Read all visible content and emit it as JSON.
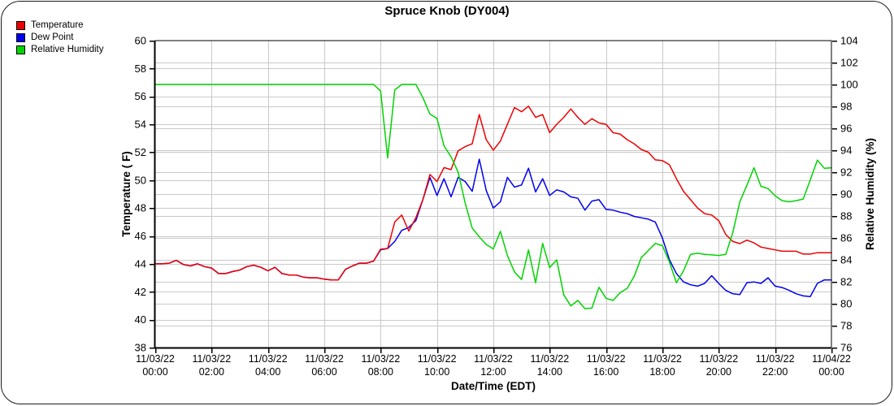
{
  "title": "Spruce Knob (DY004)",
  "chart_data": {
    "type": "line",
    "title": "Spruce Knob (DY004)",
    "xlabel": "Date/Time (EDT)",
    "ylabel_left": "Temperature ( F)",
    "ylabel_right": "Relative Humidity (%)",
    "grid": true,
    "grid_color": "#c9c9c9",
    "axis_color": "#000000",
    "axis_left": {
      "min": 38,
      "max": 60,
      "tick_step": 2,
      "ticks": [
        38,
        40,
        42,
        44,
        46,
        48,
        50,
        52,
        54,
        56,
        58,
        60
      ]
    },
    "axis_right": {
      "min": 76,
      "max": 104,
      "tick_step": 2,
      "ticks": [
        76,
        78,
        80,
        82,
        84,
        86,
        88,
        90,
        92,
        94,
        96,
        98,
        100,
        102,
        104
      ]
    },
    "x_ticks": [
      {
        "date": "11/03/22",
        "time": "00:00"
      },
      {
        "date": "11/03/22",
        "time": "02:00"
      },
      {
        "date": "11/03/22",
        "time": "04:00"
      },
      {
        "date": "11/03/22",
        "time": "06:00"
      },
      {
        "date": "11/03/22",
        "time": "08:00"
      },
      {
        "date": "11/03/22",
        "time": "10:00"
      },
      {
        "date": "11/03/22",
        "time": "12:00"
      },
      {
        "date": "11/03/22",
        "time": "14:00"
      },
      {
        "date": "11/03/22",
        "time": "16:00"
      },
      {
        "date": "11/03/22",
        "time": "18:00"
      },
      {
        "date": "11/03/22",
        "time": "20:00"
      },
      {
        "date": "11/03/22",
        "time": "22:00"
      },
      {
        "date": "11/04/22",
        "time": "00:00"
      }
    ],
    "x_hours_step": 0.25,
    "series": [
      {
        "name": "Temperature",
        "axis": "left",
        "color": "#ee0000",
        "values": [
          44.0,
          44.0,
          44.05,
          44.25,
          43.95,
          43.85,
          44.0,
          43.8,
          43.7,
          43.3,
          43.3,
          43.45,
          43.55,
          43.8,
          43.9,
          43.75,
          43.5,
          43.75,
          43.3,
          43.2,
          43.2,
          43.05,
          43.0,
          43.0,
          42.9,
          42.85,
          42.85,
          43.6,
          43.85,
          44.05,
          44.05,
          44.2,
          45.05,
          45.1,
          47.0,
          47.5,
          46.35,
          47.3,
          48.6,
          50.4,
          49.9,
          50.9,
          50.75,
          52.1,
          52.4,
          52.6,
          54.7,
          52.9,
          52.15,
          52.8,
          54.0,
          55.2,
          54.9,
          55.3,
          54.5,
          54.7,
          53.4,
          54.0,
          54.5,
          55.1,
          54.5,
          54.0,
          54.4,
          54.1,
          54.0,
          53.4,
          53.3,
          52.9,
          52.6,
          52.2,
          52.0,
          51.45,
          51.4,
          51.1,
          50.1,
          49.2,
          48.6,
          48.0,
          47.6,
          47.5,
          47.1,
          46.1,
          45.6,
          45.45,
          45.7,
          45.5,
          45.2,
          45.1,
          45.0,
          44.9,
          44.9,
          44.9,
          44.7,
          44.7,
          44.8,
          44.8,
          44.8
        ]
      },
      {
        "name": "Dew Point",
        "axis": "left",
        "color": "#0000ee",
        "values": [
          44.0,
          44.0,
          44.05,
          44.25,
          43.95,
          43.85,
          44.0,
          43.8,
          43.7,
          43.3,
          43.3,
          43.45,
          43.55,
          43.8,
          43.9,
          43.75,
          43.5,
          43.75,
          43.3,
          43.2,
          43.2,
          43.05,
          43.0,
          43.0,
          42.9,
          42.85,
          42.85,
          43.6,
          43.85,
          44.05,
          44.05,
          44.2,
          45.0,
          45.1,
          45.6,
          46.4,
          46.6,
          47.1,
          48.6,
          50.2,
          48.9,
          50.1,
          48.8,
          50.2,
          49.9,
          49.2,
          51.5,
          49.25,
          48.0,
          48.45,
          50.2,
          49.5,
          49.65,
          50.85,
          49.15,
          50.1,
          48.9,
          49.3,
          49.15,
          48.8,
          48.7,
          47.85,
          48.5,
          48.6,
          47.9,
          47.85,
          47.7,
          47.6,
          47.4,
          47.3,
          47.2,
          47.0,
          45.85,
          44.3,
          43.3,
          42.7,
          42.5,
          42.4,
          42.6,
          43.15,
          42.6,
          42.1,
          41.85,
          41.8,
          42.65,
          42.7,
          42.6,
          43.0,
          42.4,
          42.3,
          42.1,
          41.85,
          41.7,
          41.65,
          42.6,
          42.85,
          42.85
        ]
      },
      {
        "name": "Relative Humidity",
        "axis": "right",
        "color": "#00d400",
        "values": [
          100,
          100,
          100,
          100,
          100,
          100,
          100,
          100,
          100,
          100,
          100,
          100,
          100,
          100,
          100,
          100,
          100,
          100,
          100,
          100,
          100,
          100,
          100,
          100,
          100,
          100,
          100,
          100,
          100,
          100,
          100,
          100,
          99.4,
          93.3,
          99.5,
          100,
          100,
          100,
          98.8,
          97.3,
          96.9,
          94.4,
          93.4,
          92.0,
          89.2,
          86.9,
          86.1,
          85.4,
          85.0,
          86.6,
          84.4,
          82.9,
          82.2,
          84.9,
          81.9,
          85.5,
          83.3,
          84.0,
          80.8,
          79.8,
          80.3,
          79.55,
          79.6,
          81.5,
          80.5,
          80.3,
          81.0,
          81.4,
          82.5,
          84.2,
          84.85,
          85.5,
          85.3,
          83.8,
          81.9,
          83.0,
          84.5,
          84.6,
          84.5,
          84.45,
          84.4,
          84.5,
          86.5,
          89.3,
          90.8,
          92.4,
          90.7,
          90.5,
          89.85,
          89.4,
          89.3,
          89.4,
          89.55,
          91.3,
          93.1,
          92.35,
          92.4
        ]
      }
    ]
  }
}
